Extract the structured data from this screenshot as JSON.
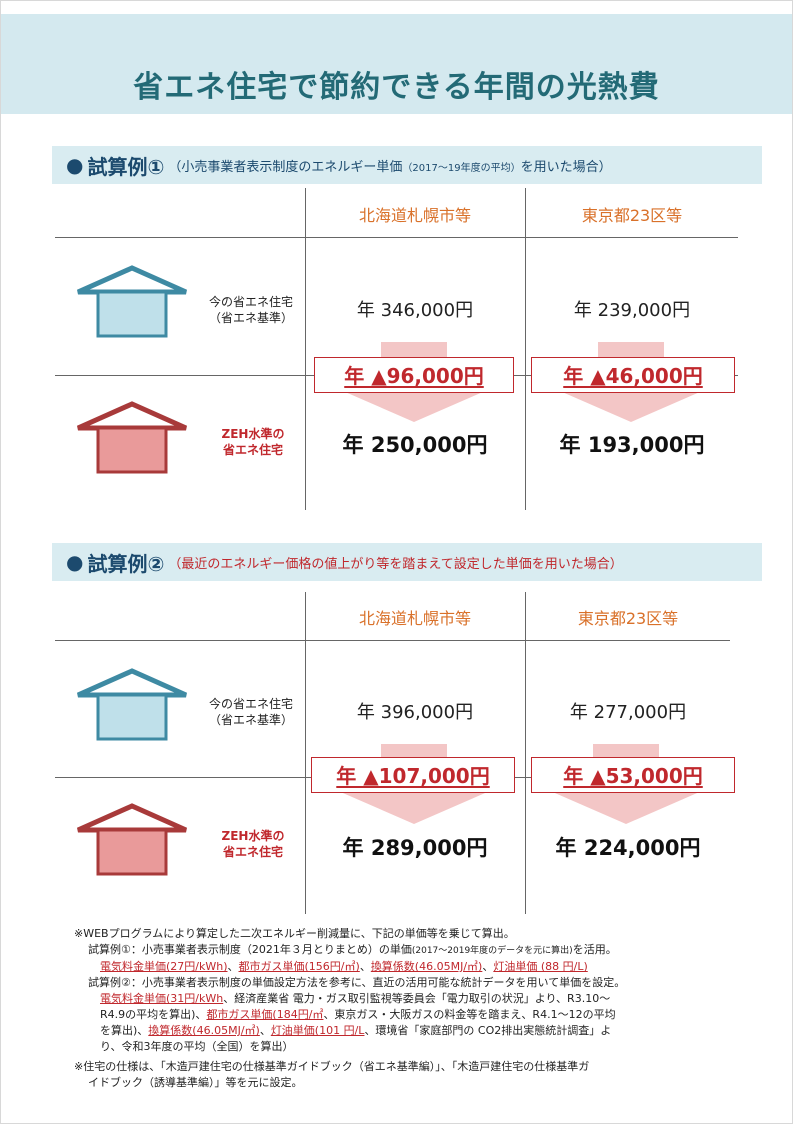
{
  "title": "省エネ住宅で節約できる年間の光熱費",
  "house_labels": {
    "current_line1": "今の省エネ住宅",
    "current_line2": "（省エネ基準）",
    "zeh_line1": "ZEH水準の",
    "zeh_line2": "省エネ住宅"
  },
  "colors": {
    "title": "#236a76",
    "accent_orange": "#d9712a",
    "accent_red": "#c0282d",
    "house_blue": "#3e8aa3",
    "house_red": "#a83a3a",
    "arrow_pink": "#f3c6c6"
  },
  "sections": [
    {
      "bullet": "●",
      "label": "試算例①",
      "desc_main": "（小売事業者表示制度のエネルギー単価",
      "desc_small": "（2017～19年度の平均）",
      "desc_end": "を用いた場合）",
      "columns": [
        "北海道札幌市等",
        "東京都23区等"
      ],
      "current": [
        "年 346,000円",
        "年 239,000円"
      ],
      "savings": [
        "年 ▲96,000円",
        "年 ▲46,000円"
      ],
      "zeh": [
        "年 250,000円",
        "年 193,000円"
      ]
    },
    {
      "bullet": "●",
      "label": "試算例②",
      "desc_main": "（最近のエネルギー価格の値上がり等を踏まえて設定した単価を用いた場合）",
      "columns": [
        "北海道札幌市等",
        "東京都23区等"
      ],
      "current": [
        "年 396,000円",
        "年 277,000円"
      ],
      "savings": [
        "年 ▲107,000円",
        "年 ▲53,000円"
      ],
      "zeh": [
        "年 289,000円",
        "年 224,000円"
      ]
    }
  ],
  "notes": {
    "n1": "※WEBプログラムにより算定した二次エネルギー削減量に、下記の単価等を乗じて算出。",
    "n2a": "試算例①：小売事業者表示制度（2021年３月とりまとめ）の単価",
    "n2b": "(2017～2019年度のデータを元に算出)",
    "n2c": "を活用。",
    "n3a": "電気料金単価(27円/kWh)",
    "n3b": "、",
    "n3c": "都市ガス単価(156円/㎥)",
    "n3d": "、",
    "n3e": "換算係数(46.05MJ/㎥)",
    "n3f": "、",
    "n3g": "灯油単価 (88 円/L)",
    "n4": "試算例②：小売事業者表示制度の単価設定方法を参考に、直近の活用可能な統計データを用いて単価を設定。",
    "n5a": "電気料金単価(31円/kWh",
    "n5b": "、経済産業省 電力・ガス取引監視等委員会「電力取引の状況」より、R3.10～",
    "n6a": "R4.9の平均を算出)、",
    "n6b": "都市ガス単価(184円/㎥",
    "n6c": "、東京ガス・大阪ガスの料金等を踏まえ、R4.1～12の平均",
    "n7a": "を算出)、",
    "n7b": "換算係数(46.05MJ/㎥)",
    "n7c": "、",
    "n7d": "灯油単価(101 円/L",
    "n7e": "、環境省「家庭部門の CO2排出実態統計調査」よ",
    "n8": "り、令和3年度の平均（全国）を算出）",
    "n9": "※住宅の仕様は、「木造戸建住宅の仕様基準ガイドブック（省エネ基準編）」、「木造戸建住宅の仕様基準ガ",
    "n10": "イドブック（誘導基準編）」等を元に設定。"
  }
}
